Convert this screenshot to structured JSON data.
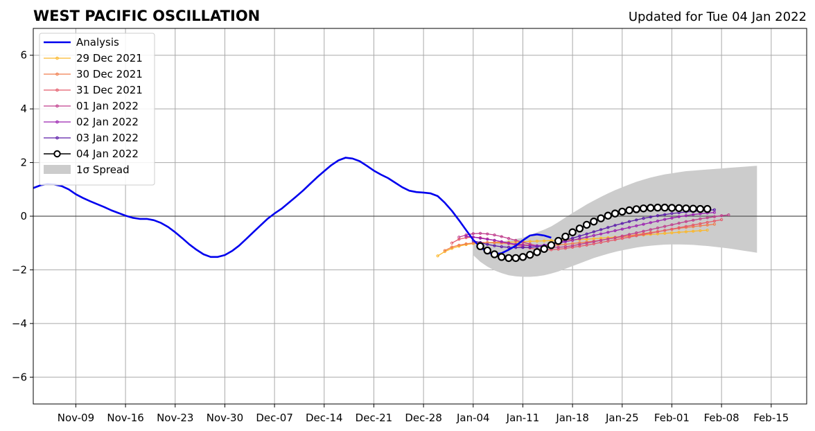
{
  "chart_data": {
    "type": "line",
    "title": "WEST PACIFIC OSCILLATION",
    "subtitle": "Updated for Tue 04 Jan 2022",
    "xlabel": "",
    "ylabel": "",
    "x_range": [
      "2021-11-03",
      "2022-02-20"
    ],
    "ylim": [
      -7,
      7
    ],
    "x_ticks": [
      {
        "date": "2021-11-09",
        "label": "Nov-09"
      },
      {
        "date": "2021-11-16",
        "label": "Nov-16"
      },
      {
        "date": "2021-11-23",
        "label": "Nov-23"
      },
      {
        "date": "2021-11-30",
        "label": "Nov-30"
      },
      {
        "date": "2021-12-07",
        "label": "Dec-07"
      },
      {
        "date": "2021-12-14",
        "label": "Dec-14"
      },
      {
        "date": "2021-12-21",
        "label": "Dec-21"
      },
      {
        "date": "2021-12-28",
        "label": "Dec-28"
      },
      {
        "date": "2022-01-04",
        "label": "Jan-04"
      },
      {
        "date": "2022-01-11",
        "label": "Jan-11"
      },
      {
        "date": "2022-01-18",
        "label": "Jan-18"
      },
      {
        "date": "2022-01-25",
        "label": "Jan-25"
      },
      {
        "date": "2022-02-01",
        "label": "Feb-01"
      },
      {
        "date": "2022-02-08",
        "label": "Feb-08"
      },
      {
        "date": "2022-02-15",
        "label": "Feb-15"
      }
    ],
    "y_ticks": [
      {
        "value": 6,
        "label": "6"
      },
      {
        "value": 4,
        "label": "4"
      },
      {
        "value": 2,
        "label": "2"
      },
      {
        "value": 0,
        "label": "0"
      },
      {
        "value": -2,
        "label": "−2"
      },
      {
        "value": -4,
        "label": "−4"
      },
      {
        "value": -6,
        "label": "−6"
      }
    ],
    "grid": true,
    "legend_position": "top-left",
    "analysis": {
      "name": "Analysis",
      "color": "#0000ee",
      "start_date": "2021-11-03",
      "values": [
        1.05,
        1.15,
        1.2,
        1.18,
        1.12,
        1.0,
        0.82,
        0.68,
        0.56,
        0.45,
        0.34,
        0.22,
        0.12,
        0.02,
        -0.06,
        -0.1,
        -0.1,
        -0.15,
        -0.25,
        -0.4,
        -0.6,
        -0.82,
        -1.05,
        -1.25,
        -1.42,
        -1.52,
        -1.52,
        -1.45,
        -1.3,
        -1.1,
        -0.85,
        -0.6,
        -0.35,
        -0.1,
        0.1,
        0.28,
        0.5,
        0.72,
        0.95,
        1.2,
        1.45,
        1.68,
        1.9,
        2.08,
        2.18,
        2.15,
        2.05,
        1.88,
        1.7,
        1.55,
        1.42,
        1.25,
        1.08,
        0.95,
        0.9,
        0.88,
        0.85,
        0.75,
        0.5,
        0.2,
        -0.15,
        -0.52,
        -0.88,
        -1.15,
        -1.35,
        -1.42,
        -1.38,
        -1.25,
        -1.1,
        -0.9,
        -0.72,
        -0.68,
        -0.72,
        -0.8
      ]
    },
    "spread": {
      "name": "1σ Spread",
      "color": "#cccccc",
      "start_date": "2022-01-04",
      "upper": [
        -0.95,
        -1.0,
        -1.0,
        -0.98,
        -0.95,
        -0.9,
        -0.85,
        -0.8,
        -0.7,
        -0.6,
        -0.5,
        -0.38,
        -0.22,
        -0.05,
        0.12,
        0.28,
        0.44,
        0.58,
        0.72,
        0.85,
        0.97,
        1.08,
        1.18,
        1.28,
        1.36,
        1.44,
        1.5,
        1.56,
        1.6,
        1.64,
        1.68,
        1.7,
        1.72,
        1.74,
        1.76,
        1.78,
        1.8,
        1.82,
        1.84,
        1.86,
        1.88
      ],
      "lower": [
        -1.45,
        -1.7,
        -1.88,
        -2.02,
        -2.12,
        -2.2,
        -2.24,
        -2.26,
        -2.26,
        -2.24,
        -2.2,
        -2.14,
        -2.06,
        -1.96,
        -1.86,
        -1.76,
        -1.66,
        -1.56,
        -1.48,
        -1.4,
        -1.33,
        -1.27,
        -1.22,
        -1.17,
        -1.13,
        -1.1,
        -1.08,
        -1.06,
        -1.05,
        -1.05,
        -1.06,
        -1.07,
        -1.09,
        -1.11,
        -1.14,
        -1.17,
        -1.2,
        -1.24,
        -1.28,
        -1.32,
        -1.36
      ]
    },
    "series": [
      {
        "name": "29 Dec 2021",
        "color": "#fbb72a",
        "start_date": "2021-12-30",
        "values": [
          -1.48,
          -1.32,
          -1.2,
          -1.12,
          -1.06,
          -1.02,
          -1.0,
          -0.98,
          -0.97,
          -0.97,
          -0.97,
          -0.96,
          -0.95,
          -0.94,
          -0.93,
          -0.92,
          -0.91,
          -0.9,
          -0.89,
          -0.88,
          -0.87,
          -0.86,
          -0.84,
          -0.82,
          -0.8,
          -0.78,
          -0.76,
          -0.74,
          -0.72,
          -0.7,
          -0.68,
          -0.66,
          -0.64,
          -0.62,
          -0.6,
          -0.58,
          -0.56,
          -0.54,
          -0.52
        ]
      },
      {
        "name": "30 Dec 2021",
        "color": "#f07e4d",
        "start_date": "2021-12-31",
        "values": [
          -1.28,
          -1.15,
          -1.08,
          -1.03,
          -1.0,
          -0.98,
          -0.98,
          -0.99,
          -1.0,
          -1.02,
          -1.04,
          -1.06,
          -1.08,
          -1.1,
          -1.1,
          -1.09,
          -1.07,
          -1.05,
          -1.02,
          -0.99,
          -0.96,
          -0.93,
          -0.89,
          -0.85,
          -0.81,
          -0.77,
          -0.73,
          -0.69,
          -0.65,
          -0.61,
          -0.57,
          -0.53,
          -0.49,
          -0.45,
          -0.42,
          -0.39,
          -0.36,
          -0.33,
          -0.3
        ]
      },
      {
        "name": "31 Dec 2021",
        "color": "#e45a6a",
        "start_date": "2022-01-01",
        "values": [
          -1.0,
          -0.86,
          -0.8,
          -0.78,
          -0.8,
          -0.85,
          -0.9,
          -0.96,
          -1.02,
          -1.08,
          -1.14,
          -1.19,
          -1.23,
          -1.25,
          -1.25,
          -1.23,
          -1.2,
          -1.16,
          -1.12,
          -1.08,
          -1.03,
          -0.98,
          -0.93,
          -0.88,
          -0.83,
          -0.78,
          -0.73,
          -0.68,
          -0.63,
          -0.58,
          -0.53,
          -0.48,
          -0.43,
          -0.38,
          -0.33,
          -0.28,
          -0.23,
          -0.18,
          -0.13
        ]
      },
      {
        "name": "01 Jan 2022",
        "color": "#c03d8c",
        "start_date": "2022-01-02",
        "values": [
          -0.78,
          -0.7,
          -0.65,
          -0.64,
          -0.66,
          -0.7,
          -0.76,
          -0.83,
          -0.9,
          -0.97,
          -1.04,
          -1.1,
          -1.14,
          -1.16,
          -1.16,
          -1.14,
          -1.1,
          -1.05,
          -1.0,
          -0.95,
          -0.9,
          -0.85,
          -0.8,
          -0.74,
          -0.68,
          -0.62,
          -0.56,
          -0.5,
          -0.44,
          -0.38,
          -0.32,
          -0.26,
          -0.2,
          -0.15,
          -0.1,
          -0.06,
          -0.02,
          0.02,
          0.05
        ]
      },
      {
        "name": "02 Jan 2022",
        "color": "#9b20b0",
        "start_date": "2022-01-03",
        "values": [
          -0.75,
          -0.78,
          -0.82,
          -0.86,
          -0.9,
          -0.95,
          -1.0,
          -1.05,
          -1.08,
          -1.1,
          -1.1,
          -1.08,
          -1.05,
          -1.0,
          -0.95,
          -0.9,
          -0.84,
          -0.78,
          -0.72,
          -0.66,
          -0.6,
          -0.54,
          -0.48,
          -0.42,
          -0.36,
          -0.3,
          -0.24,
          -0.18,
          -0.12,
          -0.07,
          -0.02,
          0.02,
          0.06,
          0.09,
          0.12,
          0.14
        ]
      },
      {
        "name": "03 Jan 2022",
        "color": "#5a1aa8",
        "start_date": "2022-01-04",
        "values": [
          -0.92,
          -0.98,
          -1.05,
          -1.1,
          -1.14,
          -1.16,
          -1.17,
          -1.17,
          -1.16,
          -1.14,
          -1.1,
          -1.04,
          -0.97,
          -0.9,
          -0.82,
          -0.74,
          -0.66,
          -0.58,
          -0.5,
          -0.42,
          -0.34,
          -0.27,
          -0.2,
          -0.14,
          -0.08,
          -0.03,
          0.02,
          0.06,
          0.1,
          0.13,
          0.16,
          0.18,
          0.2,
          0.22,
          0.24
        ]
      },
      {
        "name": "04 Jan 2022",
        "color": "#000000",
        "start_date": "2022-01-05",
        "values": [
          -1.12,
          -1.28,
          -1.42,
          -1.52,
          -1.56,
          -1.56,
          -1.52,
          -1.44,
          -1.34,
          -1.22,
          -1.08,
          -0.92,
          -0.76,
          -0.6,
          -0.46,
          -0.32,
          -0.2,
          -0.08,
          0.02,
          0.1,
          0.17,
          0.22,
          0.26,
          0.29,
          0.31,
          0.32,
          0.32,
          0.31,
          0.3,
          0.29,
          0.28,
          0.27,
          0.27
        ]
      }
    ],
    "legend": [
      "Analysis",
      "29 Dec 2021",
      "30 Dec 2021",
      "31 Dec 2021",
      "01 Jan 2022",
      "02 Jan 2022",
      "03 Jan 2022",
      "04 Jan 2022",
      "1σ Spread"
    ]
  }
}
